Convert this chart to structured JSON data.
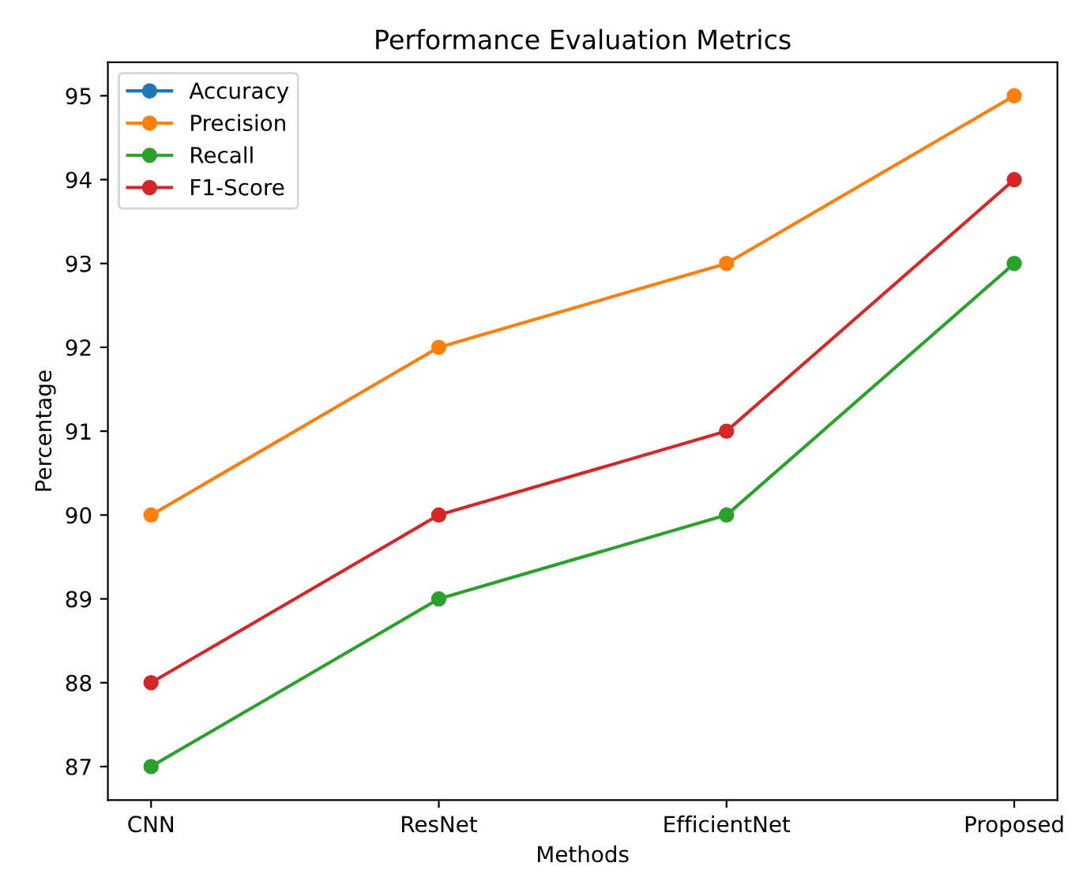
{
  "chart_data": {
    "type": "line",
    "title": "Performance Evaluation Metrics",
    "xlabel": "Methods",
    "ylabel": "Percentage",
    "categories": [
      "CNN",
      "ResNet",
      "EfficientNet",
      "Proposed"
    ],
    "series": [
      {
        "name": "Accuracy",
        "color": "#1f77b4",
        "values": [
          null,
          null,
          null,
          null
        ]
      },
      {
        "name": "Precision",
        "color": "#ff7f0e",
        "values": [
          90,
          92,
          93,
          95
        ]
      },
      {
        "name": "Recall",
        "color": "#2ca02c",
        "values": [
          87,
          89,
          90,
          93
        ]
      },
      {
        "name": "F1-Score",
        "color": "#d62728",
        "values": [
          88,
          90,
          91,
          94
        ]
      }
    ],
    "ylim": [
      86.6,
      95.4
    ],
    "yticks": [
      87,
      88,
      89,
      90,
      91,
      92,
      93,
      94,
      95
    ],
    "marker": "circle",
    "line_style": "solid",
    "legend": "top left",
    "grid": false
  }
}
